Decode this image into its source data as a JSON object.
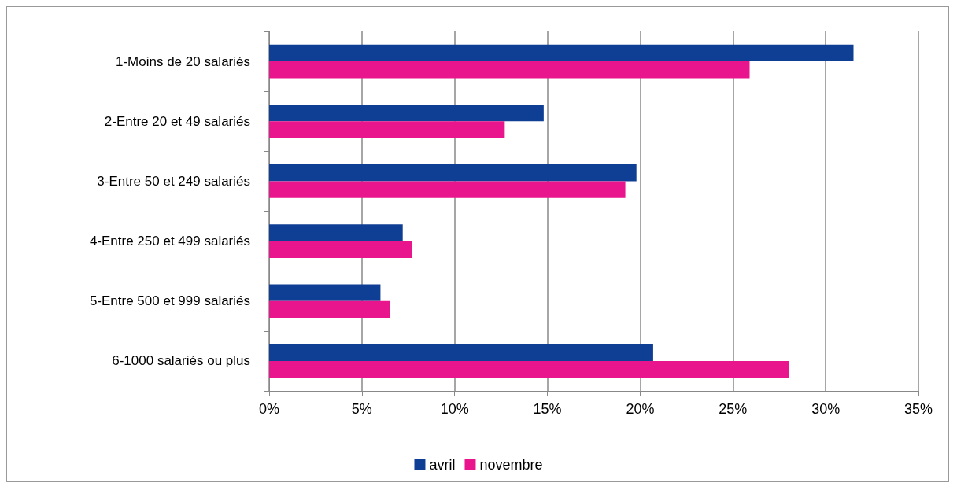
{
  "chart_data": {
    "type": "bar",
    "orientation": "horizontal",
    "categories": [
      "1-Moins de 20 salariés",
      "2-Entre 20 et 49 salariés",
      "3-Entre 50 et 249 salariés",
      "4-Entre 250 et 499 salariés",
      "5-Entre 500 et 999 salariés",
      "6-1000 salariés ou plus"
    ],
    "series": [
      {
        "name": "avril",
        "color": "#0f3f94",
        "values": [
          31.5,
          14.8,
          19.8,
          7.2,
          6.0,
          20.7
        ]
      },
      {
        "name": "novembre",
        "color": "#e9158d",
        "values": [
          25.9,
          12.7,
          19.2,
          7.7,
          6.5,
          28.0
        ]
      }
    ],
    "xlim": [
      0,
      35
    ],
    "xticks": [
      {
        "value": 0,
        "label": "0%"
      },
      {
        "value": 5,
        "label": "5%"
      },
      {
        "value": 10,
        "label": "10%"
      },
      {
        "value": 15,
        "label": "15%"
      },
      {
        "value": 20,
        "label": "20%"
      },
      {
        "value": 25,
        "label": "25%"
      },
      {
        "value": 30,
        "label": "30%"
      },
      {
        "value": 35,
        "label": "35%"
      }
    ],
    "grid": "x",
    "legend": "bottom"
  }
}
